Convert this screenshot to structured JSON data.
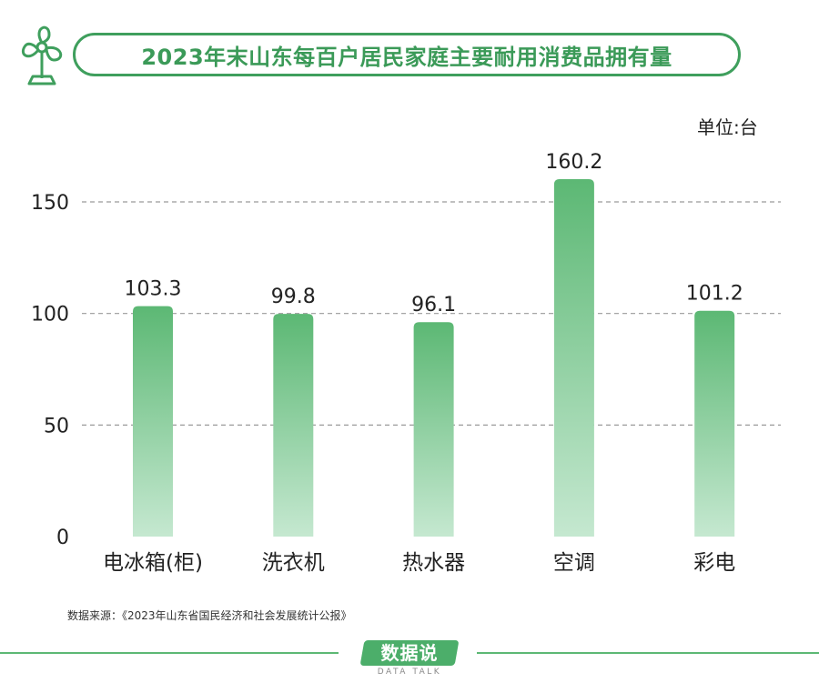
{
  "header": {
    "title": "2023年末山东每百户居民家庭主要耐用消费品拥有量",
    "logo_icon": "fan-icon"
  },
  "chart_data": {
    "type": "bar",
    "title": "2023年末山东每百户居民家庭主要耐用消费品拥有量",
    "unit_label": "单位:台",
    "categories": [
      "电冰箱(柜)",
      "洗衣机",
      "热水器",
      "空调",
      "彩电"
    ],
    "values": [
      103.3,
      99.8,
      96.1,
      160.2,
      101.2
    ],
    "value_labels": [
      "103.3",
      "99.8",
      "96.1",
      "160.2",
      "101.2"
    ],
    "y_ticks": [
      0,
      50,
      100,
      150
    ],
    "ylim": [
      0,
      160.2
    ],
    "xlabel": "",
    "ylabel": "",
    "grid": true,
    "bar_color_top": "#5cb874",
    "bar_color_bottom": "#c5e8d0"
  },
  "source": "数据来源：《2023年山东省国民经济和社会发展统计公报》",
  "brand": {
    "name": "数据说",
    "sub": "DATA TALK",
    "color": "#4cae6a"
  }
}
